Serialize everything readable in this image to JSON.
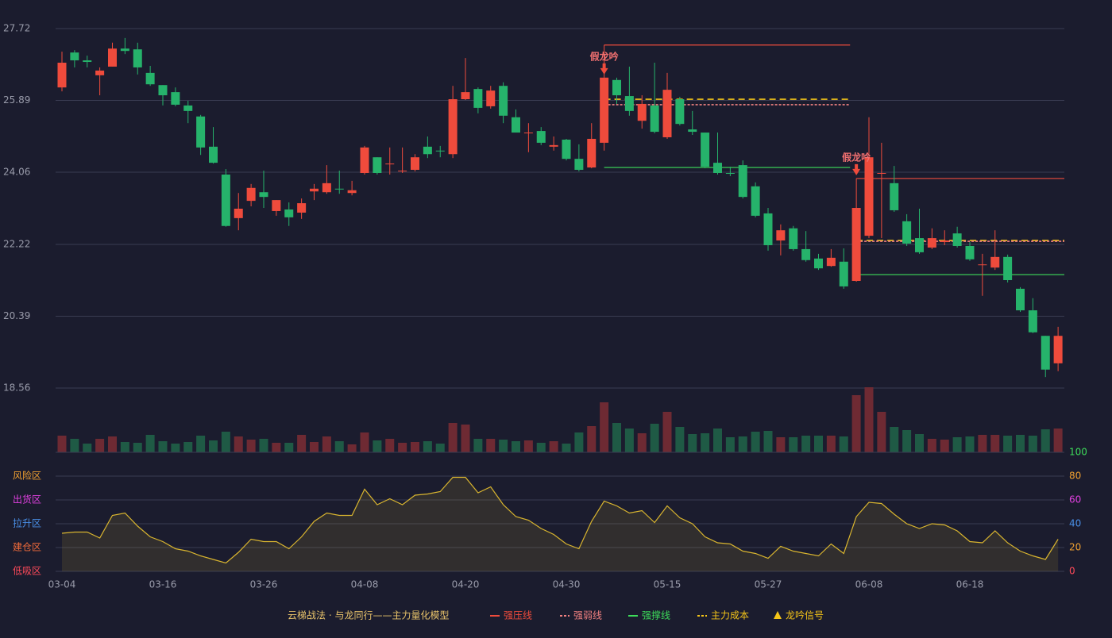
{
  "chart_data": [
    {
      "type": "candlestick",
      "categories": [
        "03-04",
        null,
        null,
        null,
        null,
        null,
        null,
        null,
        "03-16",
        null,
        null,
        null,
        null,
        null,
        null,
        null,
        "03-26",
        null,
        null,
        null,
        null,
        null,
        null,
        null,
        "04-08",
        null,
        null,
        null,
        null,
        null,
        null,
        null,
        "04-20",
        null,
        null,
        null,
        null,
        null,
        null,
        null,
        "04-30",
        null,
        null,
        null,
        null,
        null,
        null,
        null,
        "05-15",
        null,
        null,
        null,
        null,
        null,
        null,
        null,
        "05-27",
        null,
        null,
        null,
        null,
        null,
        null,
        null,
        "06-08",
        null,
        null,
        null,
        null,
        null,
        null,
        null,
        "06-18",
        null,
        null,
        null,
        null,
        null,
        null,
        null
      ],
      "open": [
        26.22,
        27.11,
        26.91,
        26.53,
        26.75,
        27.21,
        27.19,
        26.59,
        26.28,
        26.1,
        25.76,
        25.48,
        24.71,
        24.0,
        22.89,
        23.33,
        23.55,
        23.07,
        23.11,
        23.03,
        23.57,
        23.55,
        23.64,
        23.53,
        24.04,
        24.44,
        24.26,
        24.08,
        24.12,
        24.71,
        24.61,
        24.52,
        25.92,
        26.18,
        25.74,
        26.26,
        25.46,
        25.05,
        25.11,
        24.71,
        24.89,
        24.4,
        24.18,
        24.81,
        26.41,
        26.0,
        25.37,
        25.76,
        24.95,
        25.92,
        25.15,
        25.07,
        24.3,
        24.04,
        24.24,
        23.7,
        23.01,
        22.32,
        22.63,
        22.1,
        21.86,
        21.67,
        21.78,
        21.29,
        22.44,
        24.02,
        23.78,
        22.81,
        22.38,
        22.14,
        22.28,
        22.5,
        22.18,
        21.69,
        21.63,
        21.9,
        21.09,
        20.54,
        19.89,
        19.19
      ],
      "close": [
        26.85,
        26.91,
        26.87,
        26.65,
        27.21,
        27.15,
        26.73,
        26.3,
        26.02,
        25.78,
        25.62,
        24.69,
        24.3,
        22.69,
        23.13,
        23.66,
        23.43,
        23.35,
        22.91,
        23.27,
        23.64,
        23.78,
        23.62,
        23.6,
        24.69,
        24.04,
        24.28,
        24.1,
        24.44,
        24.52,
        24.59,
        25.92,
        26.1,
        25.7,
        26.14,
        25.5,
        25.07,
        25.07,
        24.81,
        24.75,
        24.4,
        24.12,
        24.91,
        26.47,
        26.02,
        25.62,
        25.8,
        25.09,
        26.16,
        25.29,
        25.09,
        24.2,
        24.04,
        24.02,
        23.43,
        22.95,
        22.2,
        22.58,
        22.1,
        21.82,
        21.61,
        21.88,
        21.15,
        23.15,
        24.44,
        24.04,
        23.09,
        22.24,
        22.02,
        22.38,
        22.32,
        22.18,
        21.84,
        21.71,
        21.9,
        21.31,
        20.54,
        19.98,
        19.03,
        19.89
      ],
      "low": [
        26.12,
        26.73,
        26.73,
        26.02,
        26.75,
        27.07,
        26.55,
        26.26,
        25.76,
        25.74,
        25.31,
        24.5,
        24.28,
        22.67,
        22.58,
        23.19,
        23.15,
        22.95,
        22.69,
        22.87,
        23.35,
        23.51,
        23.51,
        23.47,
        24.0,
        24.0,
        24.0,
        24.04,
        24.08,
        24.42,
        24.44,
        24.42,
        25.9,
        25.56,
        25.68,
        25.31,
        25.07,
        24.57,
        24.75,
        24.61,
        24.36,
        24.08,
        24.16,
        24.61,
        25.8,
        25.5,
        25.17,
        25.05,
        24.91,
        25.25,
        25.01,
        24.16,
        24.0,
        23.96,
        23.39,
        22.91,
        22.06,
        21.94,
        22.06,
        21.78,
        21.57,
        21.65,
        21.09,
        21.27,
        22.38,
        22.38,
        23.05,
        22.18,
        21.98,
        22.1,
        22.2,
        22.14,
        21.8,
        20.91,
        21.57,
        21.25,
        20.5,
        19.96,
        18.84,
        18.99
      ],
      "high": [
        27.13,
        27.17,
        27.03,
        26.73,
        27.36,
        27.48,
        27.36,
        26.77,
        26.28,
        26.22,
        25.88,
        25.52,
        25.21,
        24.14,
        23.53,
        23.76,
        24.1,
        23.35,
        23.29,
        23.39,
        23.76,
        24.24,
        24.1,
        23.84,
        24.73,
        24.44,
        24.69,
        24.69,
        24.52,
        24.97,
        24.73,
        26.26,
        26.97,
        26.22,
        26.26,
        26.35,
        25.66,
        25.31,
        25.21,
        24.97,
        24.91,
        24.77,
        25.31,
        26.47,
        26.47,
        26.75,
        26.02,
        26.85,
        26.59,
        25.98,
        25.62,
        25.07,
        25.07,
        24.2,
        24.36,
        23.8,
        23.15,
        22.73,
        22.69,
        22.56,
        21.98,
        22.1,
        22.12,
        23.9,
        25.46,
        24.81,
        24.22,
        22.99,
        23.13,
        22.63,
        22.58,
        22.67,
        22.28,
        21.98,
        22.58,
        21.96,
        21.13,
        20.85,
        19.89,
        20.12
      ],
      "up_color": "#ef4b3c",
      "down_color": "#26b36b",
      "ylim": [
        18.56,
        27.72
      ],
      "yticks": [
        18.56,
        20.39,
        22.22,
        24.06,
        25.89,
        27.72
      ],
      "grid": true,
      "levels": [
        {
          "value": 27.3,
          "from": 43,
          "to": 62,
          "color": "#ef4b3c",
          "dash": false
        },
        {
          "value": 25.92,
          "from": 43,
          "to": 62,
          "color": "#f5c518",
          "dash": true
        },
        {
          "value": 25.78,
          "from": 43,
          "to": 62,
          "color": "#f08080",
          "dash": true
        },
        {
          "value": 24.18,
          "from": 43,
          "to": 62,
          "color": "#3ddc5a",
          "dash": false
        },
        {
          "value": 23.9,
          "from": 63,
          "to": 79,
          "color": "#ef4b3c",
          "dash": false
        },
        {
          "value": 22.32,
          "from": 63,
          "to": 79,
          "color": "#f5c518",
          "dash": true
        },
        {
          "value": 22.3,
          "from": 63,
          "to": 79,
          "color": "#f08080",
          "dash": true
        },
        {
          "value": 21.45,
          "from": 63,
          "to": 79,
          "color": "#3ddc5a",
          "dash": false
        }
      ],
      "annotations": [
        {
          "text": "假龙吟",
          "index": 43
        },
        {
          "text": "假龙吟",
          "index": 63
        }
      ]
    },
    {
      "type": "bar",
      "values": [
        21,
        17,
        11,
        17,
        20,
        13,
        12,
        22,
        14,
        11,
        13,
        21,
        15,
        26,
        20,
        16,
        17,
        12,
        12,
        22,
        13,
        20,
        14,
        10,
        25,
        15,
        17,
        12,
        13,
        14,
        11,
        37,
        35,
        17,
        17,
        16,
        14,
        15,
        12,
        14,
        11,
        25,
        33,
        63,
        37,
        30,
        24,
        36,
        51,
        32,
        23,
        24,
        30,
        19,
        20,
        26,
        27,
        19,
        19,
        21,
        21,
        21,
        20,
        72,
        82,
        51,
        32,
        28,
        23,
        17,
        16,
        19,
        20,
        22,
        22,
        21,
        22,
        21,
        29,
        30
      ],
      "up_color": "#6e2a33",
      "down_color": "#1f5a45"
    },
    {
      "type": "line",
      "values": [
        32,
        33,
        33,
        28,
        47,
        49,
        38,
        29,
        25,
        19,
        17,
        13,
        10,
        7,
        16,
        27,
        25,
        25,
        19,
        29,
        42,
        49,
        47,
        47,
        69,
        56,
        61,
        56,
        64,
        65,
        67,
        79,
        79,
        66,
        71,
        56,
        46,
        43,
        36,
        31,
        23,
        19,
        42,
        59,
        55,
        49,
        51,
        41,
        55,
        45,
        40,
        29,
        24,
        23,
        17,
        15,
        11,
        21,
        17,
        15,
        13,
        23,
        15,
        46,
        58,
        57,
        48,
        40,
        36,
        40,
        39,
        34,
        25,
        24,
        34,
        24,
        17,
        13,
        10,
        27
      ],
      "color": "#d9b52f",
      "ylim": [
        0,
        100
      ],
      "yticks": [
        0,
        20,
        40,
        60,
        80,
        100
      ],
      "ytick_colors": [
        "#ff4a5a",
        "#f0a030",
        "#4a90e8",
        "#e040e0",
        "#f0a030",
        "#3ddc5a"
      ],
      "zones": [
        {
          "label": "风险区",
          "value": 80,
          "color": "#f0a030"
        },
        {
          "label": "出货区",
          "value": 60,
          "color": "#e040e0"
        },
        {
          "label": "拉升区",
          "value": 40,
          "color": "#4a90e8"
        },
        {
          "label": "建仓区",
          "value": 20,
          "color": "#f06a3a"
        },
        {
          "label": "低吸区",
          "value": 0,
          "color": "#ff4a5a"
        }
      ]
    }
  ],
  "legend": {
    "title": "云梯战法 · 与龙同行——主力量化模型",
    "title_color": "#e8c36a",
    "items": [
      {
        "label": "强压线",
        "color": "#ef4b3c",
        "style": "solid"
      },
      {
        "label": "强弱线",
        "color": "#f08080",
        "style": "dashed"
      },
      {
        "label": "强撑线",
        "color": "#3ddc5a",
        "style": "solid"
      },
      {
        "label": "主力成本",
        "color": "#f5c518",
        "style": "dashed"
      },
      {
        "label": "龙吟信号",
        "color": "#f5c518",
        "style": "triangle"
      }
    ]
  }
}
